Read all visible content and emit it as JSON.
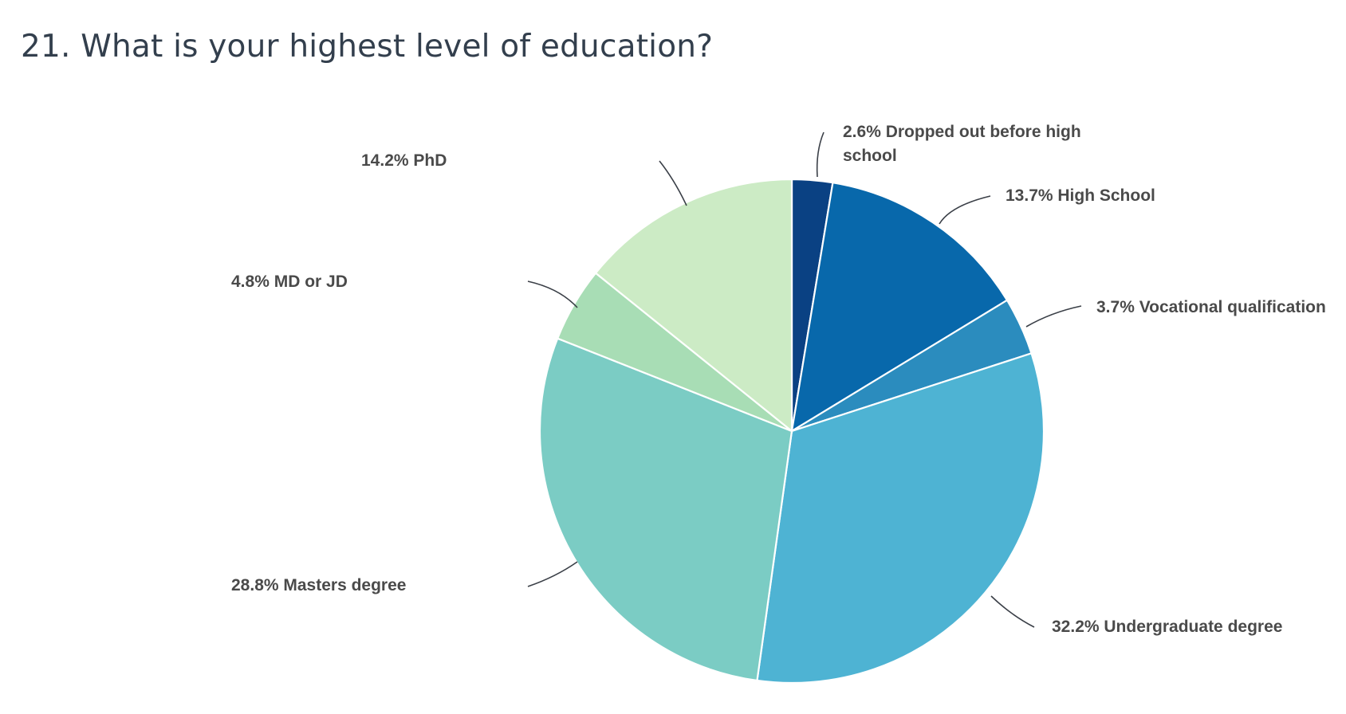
{
  "question": {
    "title": "21. What is your highest level of education?"
  },
  "chart_data": {
    "type": "pie",
    "title": "21. What is your highest level of education?",
    "slices": [
      {
        "category": "Dropped out before high school",
        "value": 2.6,
        "label_lines": [
          "2.6% Dropped out before high",
          "school"
        ],
        "color": "#0a4183"
      },
      {
        "category": "High School",
        "value": 13.7,
        "label_lines": [
          "13.7% High School"
        ],
        "color": "#0868ab"
      },
      {
        "category": "Vocational qualification",
        "value": 3.7,
        "label_lines": [
          "3.7% Vocational qualification"
        ],
        "color": "#2b8cbe"
      },
      {
        "category": "Undergraduate degree",
        "value": 32.2,
        "label_lines": [
          "32.2% Undergraduate degree"
        ],
        "color": "#4eb3d3"
      },
      {
        "category": "Masters degree",
        "value": 28.8,
        "label_lines": [
          "28.8% Masters degree"
        ],
        "color": "#7bccc4"
      },
      {
        "category": "MD or JD",
        "value": 4.8,
        "label_lines": [
          "4.8% MD or JD"
        ],
        "color": "#a8ddb5"
      },
      {
        "category": "PhD",
        "value": 14.2,
        "label_lines": [
          "14.2% PhD"
        ],
        "color": "#ccebc5"
      }
    ]
  }
}
